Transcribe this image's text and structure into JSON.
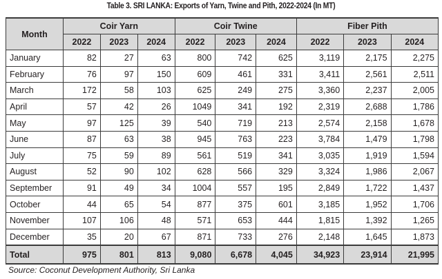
{
  "title": "Table 3. SRI LANKA: Exports of Yarn, Twine and Pith, 2022-2024 (In MT)",
  "month_header": "Month",
  "groups": [
    "Coir Yarn",
    "Coir Twine",
    "Fiber Pith"
  ],
  "years": [
    "2022",
    "2023",
    "2024"
  ],
  "rows": [
    [
      "January",
      "82",
      "27",
      "63",
      "800",
      "742",
      "625",
      "3,119",
      "2,175",
      "2,275"
    ],
    [
      "February",
      "76",
      "97",
      "150",
      "609",
      "461",
      "331",
      "3,411",
      "2,561",
      "2,511"
    ],
    [
      "March",
      "172",
      "58",
      "103",
      "625",
      "249",
      "275",
      "3,360",
      "2,237",
      "2,005"
    ],
    [
      "April",
      "57",
      "42",
      "26",
      "1049",
      "341",
      "192",
      "2,319",
      "2,688",
      "1,786"
    ],
    [
      "May",
      "97",
      "125",
      "39",
      "540",
      "719",
      "213",
      "2,574",
      "2,158",
      "1,678"
    ],
    [
      "June",
      "87",
      "63",
      "38",
      "945",
      "763",
      "223",
      "3,784",
      "1,479",
      "1,798"
    ],
    [
      "July",
      "75",
      "59",
      "89",
      "561",
      "519",
      "341",
      "3,035",
      "1,919",
      "1,594"
    ],
    [
      "August",
      "52",
      "90",
      "102",
      "628",
      "566",
      "329",
      "3,324",
      "1,986",
      "2,067"
    ],
    [
      "September",
      "91",
      "49",
      "34",
      "1004",
      "557",
      "195",
      "2,849",
      "1,722",
      "1,437"
    ],
    [
      "October",
      "44",
      "65",
      "54",
      "877",
      "375",
      "601",
      "3,185",
      "1,952",
      "1,706"
    ],
    [
      "November",
      "107",
      "106",
      "48",
      "571",
      "653",
      "444",
      "1,815",
      "1,392",
      "1,265"
    ],
    [
      "December",
      "35",
      "20",
      "67",
      "871",
      "733",
      "276",
      "2,148",
      "1,645",
      "1,873"
    ]
  ],
  "total": [
    "Total",
    "975",
    "801",
    "813",
    "9,080",
    "6,678",
    "4,045",
    "34,923",
    "23,914",
    "21,995"
  ],
  "source": "Source: Coconut Development Authority, Sri Lanka"
}
